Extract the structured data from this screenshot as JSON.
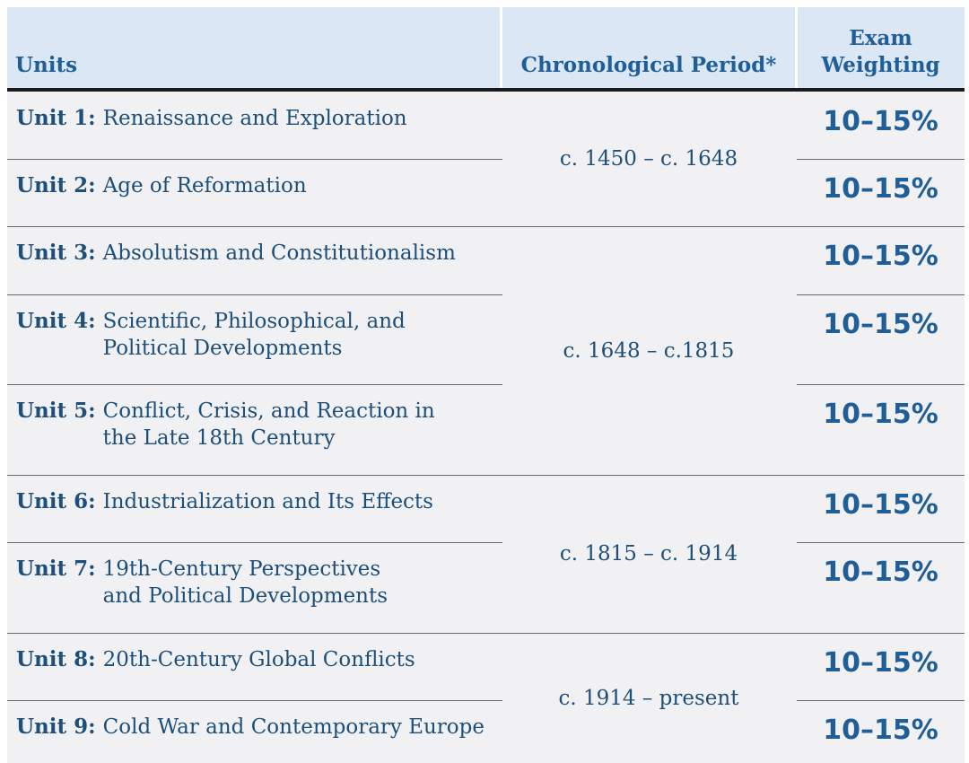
{
  "header": {
    "units": "Units",
    "period": "Chronological Period*",
    "weighting": "Exam\nWeighting"
  },
  "units": [
    {
      "label": "Unit 1:",
      "title": "Renaissance and Exploration",
      "weighting": "10–15%"
    },
    {
      "label": "Unit 2:",
      "title": "Age of Reformation",
      "weighting": "10–15%"
    },
    {
      "label": "Unit 3:",
      "title": "Absolutism and Constitutionalism",
      "weighting": "10–15%"
    },
    {
      "label": "Unit 4:",
      "title": "Scientific, Philosophical, and Political Developments",
      "weighting": "10–15%"
    },
    {
      "label": "Unit 5:",
      "title": "Conflict, Crisis, and Reaction in the Late 18th Century",
      "weighting": "10–15%"
    },
    {
      "label": "Unit 6:",
      "title": "Industrialization and Its Effects",
      "weighting": "10–15%"
    },
    {
      "label": "Unit 7:",
      "title": "19th-Century Perspectives and Political Developments",
      "weighting": "10–15%"
    },
    {
      "label": "Unit 8:",
      "title": "20th-Century Global Conflicts",
      "weighting": "10–15%"
    },
    {
      "label": "Unit 9:",
      "title": "Cold War and Contemporary Europe",
      "weighting": "10–15%"
    }
  ],
  "periods": [
    {
      "text": "c. 1450 – c. 1648"
    },
    {
      "text": "c. 1648 – c.1815"
    },
    {
      "text": "c. 1815 – c. 1914"
    },
    {
      "text": "c. 1914 – present"
    }
  ],
  "colors": {
    "header_bg": "#dbe7f4",
    "heading_text": "#1f5e97",
    "body_text": "#1d4f7c",
    "row_bg": "#f1f1f3",
    "header_rule": "#1a1a1a"
  }
}
